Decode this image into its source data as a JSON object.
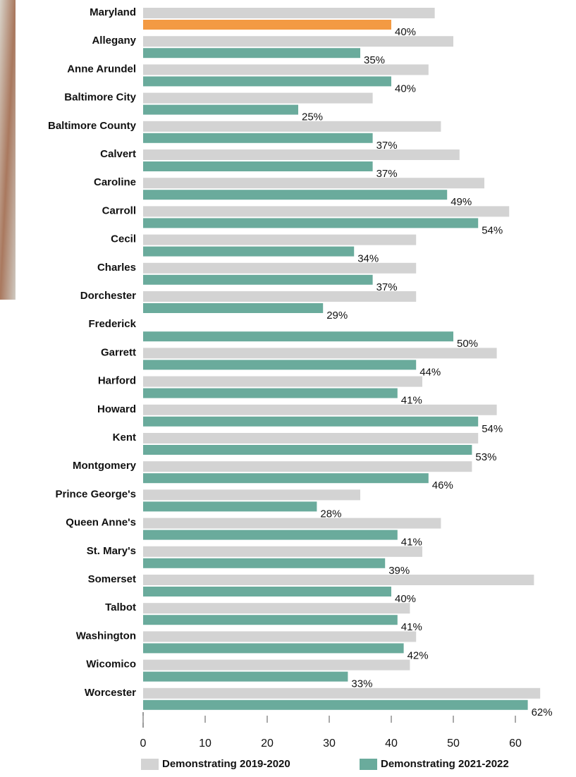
{
  "chart_data": {
    "type": "hbar",
    "categories": [
      "Maryland",
      "Allegany",
      "Anne Arundel",
      "Baltimore City",
      "Baltimore County",
      "Calvert",
      "Caroline",
      "Carroll",
      "Cecil",
      "Charles",
      "Dorchester",
      "Frederick",
      "Garrett",
      "Harford",
      "Howard",
      "Kent",
      "Montgomery",
      "Prince George's",
      "Queen Anne's",
      "St. Mary's",
      "Somerset",
      "Talbot",
      "Washington",
      "Wicomico",
      "Worcester"
    ],
    "series": [
      {
        "name": "Demonstrating 2019-2020",
        "color": "#d3d3d3",
        "values": [
          47,
          50,
          46,
          37,
          48,
          51,
          55,
          59,
          44,
          44,
          44,
          null,
          57,
          45,
          57,
          54,
          53,
          35,
          48,
          45,
          63,
          43,
          44,
          43,
          64
        ]
      },
      {
        "name": "Demonstrating 2021-2022",
        "color": "#6aab9c",
        "colors": [
          "#f39a43",
          "#6aab9c",
          "#6aab9c",
          "#6aab9c",
          "#6aab9c",
          "#6aab9c",
          "#6aab9c",
          "#6aab9c",
          "#6aab9c",
          "#6aab9c",
          "#6aab9c",
          "#6aab9c",
          "#6aab9c",
          "#6aab9c",
          "#6aab9c",
          "#6aab9c",
          "#6aab9c",
          "#6aab9c",
          "#6aab9c",
          "#6aab9c",
          "#6aab9c",
          "#6aab9c",
          "#6aab9c",
          "#6aab9c",
          "#6aab9c"
        ],
        "values": [
          40,
          35,
          40,
          25,
          37,
          37,
          49,
          54,
          34,
          37,
          29,
          50,
          44,
          41,
          54,
          53,
          46,
          28,
          41,
          39,
          40,
          41,
          42,
          33,
          62
        ],
        "value_labels": [
          "40%",
          "35%",
          "40%",
          "25%",
          "37%",
          "37%",
          "49%",
          "54%",
          "34%",
          "37%",
          "29%",
          "50%",
          "44%",
          "41%",
          "54%",
          "53%",
          "46%",
          "28%",
          "41%",
          "39%",
          "40%",
          "41%",
          "42%",
          "33%",
          "62%"
        ]
      }
    ],
    "xlim": [
      0,
      70
    ],
    "xticks": [
      0,
      10,
      20,
      30,
      40,
      50,
      60
    ],
    "legend": "bottom"
  }
}
